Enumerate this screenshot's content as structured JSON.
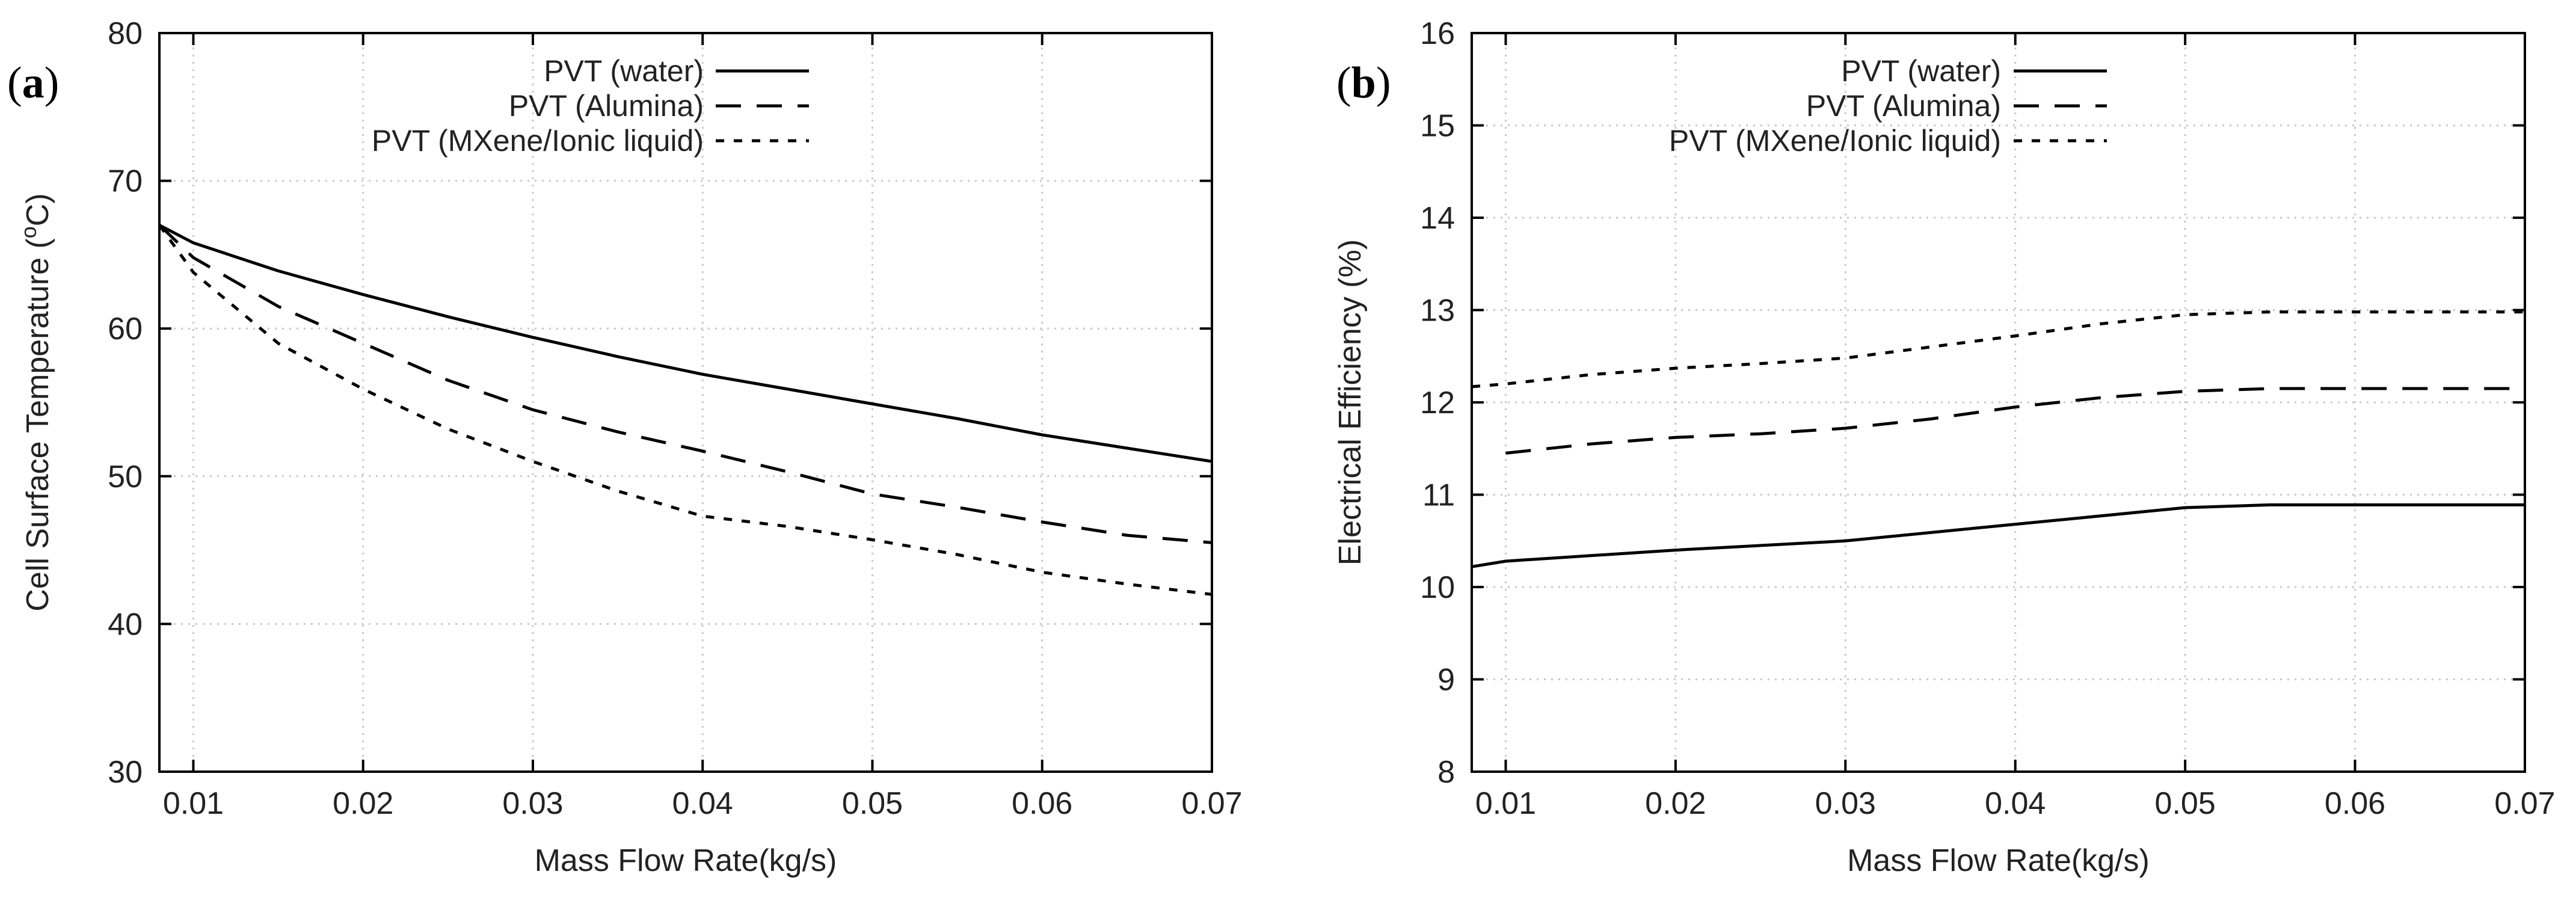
{
  "chart_data": [
    {
      "panel_label": "(a)",
      "type": "line",
      "xlabel": "Mass Flow Rate(kg/s)",
      "ylabel": "Cell Surface Temperature (°C)",
      "ylabel_parts": {
        "pre": "Cell Surface Temperature (",
        "sup": "o",
        "post": "C)"
      },
      "xlim": [
        0.008,
        0.07
      ],
      "ylim": [
        30,
        80
      ],
      "xticks": [
        0.01,
        0.02,
        0.03,
        0.04,
        0.05,
        0.06,
        0.07
      ],
      "xtick_labels": [
        "0.01",
        "0.02",
        "0.03",
        "0.04",
        "0.05",
        "0.06",
        "0.07"
      ],
      "yticks": [
        30,
        40,
        50,
        60,
        70,
        80
      ],
      "ytick_labels": [
        "30",
        "40",
        "50",
        "60",
        "70",
        "80"
      ],
      "grid": true,
      "legend_position": "top-right",
      "series": [
        {
          "name": "PVT (water)",
          "style": "solid",
          "x": [
            0.008,
            0.01,
            0.015,
            0.02,
            0.025,
            0.03,
            0.035,
            0.04,
            0.045,
            0.05,
            0.055,
            0.06,
            0.065,
            0.07
          ],
          "y": [
            67,
            65.8,
            63.9,
            62.3,
            60.8,
            59.4,
            58.1,
            56.9,
            55.9,
            54.9,
            53.9,
            52.8,
            51.9,
            51.0
          ]
        },
        {
          "name": "PVT (Alumina)",
          "style": "dashed",
          "x": [
            0.008,
            0.01,
            0.015,
            0.02,
            0.025,
            0.03,
            0.035,
            0.04,
            0.045,
            0.05,
            0.055,
            0.06,
            0.065,
            0.07
          ],
          "y": [
            67,
            64.8,
            61.5,
            59.0,
            56.5,
            54.5,
            53.0,
            51.7,
            50.3,
            48.8,
            47.9,
            46.9,
            46.0,
            45.5
          ]
        },
        {
          "name": "PVT (MXene/Ionic liquid)",
          "style": "dotted",
          "x": [
            0.008,
            0.01,
            0.015,
            0.02,
            0.025,
            0.03,
            0.035,
            0.04,
            0.045,
            0.05,
            0.055,
            0.06,
            0.065,
            0.07
          ],
          "y": [
            67,
            63.8,
            59.0,
            55.9,
            53.2,
            51.0,
            49.0,
            47.3,
            46.6,
            45.7,
            44.7,
            43.5,
            42.7,
            42.0
          ]
        }
      ]
    },
    {
      "panel_label": "(b)",
      "type": "line",
      "xlabel": "Mass Flow Rate(kg/s)",
      "ylabel": "Electrical Efficiency (%)",
      "xlim": [
        0.008,
        0.07
      ],
      "ylim": [
        8,
        16
      ],
      "xticks": [
        0.01,
        0.02,
        0.03,
        0.04,
        0.05,
        0.06,
        0.07
      ],
      "xtick_labels": [
        "0.01",
        "0.02",
        "0.03",
        "0.04",
        "0.05",
        "0.06",
        "0.07"
      ],
      "yticks": [
        8,
        9,
        10,
        11,
        12,
        13,
        14,
        15,
        16
      ],
      "ytick_labels": [
        "8",
        "9",
        "10",
        "11",
        "12",
        "13",
        "14",
        "15",
        "16"
      ],
      "grid": true,
      "legend_position": "top-right",
      "series": [
        {
          "name": "PVT (water)",
          "style": "solid",
          "x": [
            0.008,
            0.01,
            0.02,
            0.03,
            0.04,
            0.05,
            0.055,
            0.06,
            0.065,
            0.07
          ],
          "y": [
            10.22,
            10.28,
            10.4,
            10.5,
            10.68,
            10.86,
            10.89,
            10.89,
            10.89,
            10.89
          ]
        },
        {
          "name": "PVT (Alumina)",
          "style": "dashed",
          "x": [
            0.01,
            0.015,
            0.02,
            0.025,
            0.03,
            0.035,
            0.04,
            0.045,
            0.05,
            0.055,
            0.06,
            0.065,
            0.07
          ],
          "y": [
            11.45,
            11.55,
            11.62,
            11.66,
            11.72,
            11.82,
            11.95,
            12.05,
            12.12,
            12.15,
            12.15,
            12.15,
            12.15
          ]
        },
        {
          "name": "PVT (MXene/Ionic liquid)",
          "style": "dotted",
          "x": [
            0.008,
            0.01,
            0.015,
            0.02,
            0.025,
            0.03,
            0.035,
            0.04,
            0.045,
            0.05,
            0.055,
            0.06,
            0.065,
            0.07
          ],
          "y": [
            12.17,
            12.2,
            12.3,
            12.37,
            12.42,
            12.48,
            12.6,
            12.72,
            12.85,
            12.95,
            12.98,
            12.98,
            12.98,
            12.98
          ]
        }
      ]
    }
  ]
}
